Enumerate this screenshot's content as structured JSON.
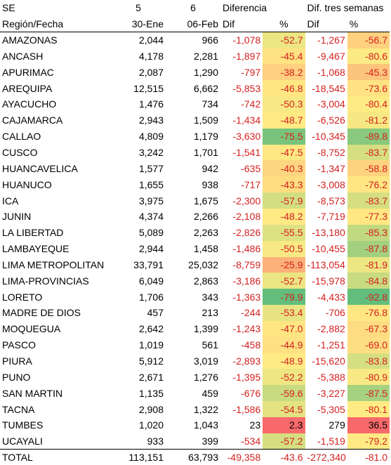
{
  "header": {
    "se_label": "SE",
    "week_a": "5",
    "week_b": "6",
    "diff_label": "Diferencia",
    "diff3_label": "Dif. tres semanas",
    "region_label": "Región/Fecha",
    "date_a": "30-Ene",
    "date_b": "06-Feb",
    "dif_col": "Dif",
    "pct_col": "%",
    "dif3_col": "Dif",
    "pct3_col": "%"
  },
  "colors": {
    "negative_text": "#d42020",
    "scale_low": "#63be7b",
    "scale_mid": "#ffeb84",
    "scale_high": "#f8696b"
  },
  "rows": [
    {
      "region": "AMAZONAS",
      "a": "2,044",
      "b": "966",
      "dif": "-1,078",
      "pct": "-52.7",
      "dif3": "-1,267",
      "pct3": "-56.7",
      "pv": -52.7,
      "pv3": -56.7
    },
    {
      "region": "ANCASH",
      "a": "4,178",
      "b": "2,281",
      "dif": "-1,897",
      "pct": "-45.4",
      "dif3": "-9,467",
      "pct3": "-80.6",
      "pv": -45.4,
      "pv3": -80.6
    },
    {
      "region": "APURIMAC",
      "a": "2,087",
      "b": "1,290",
      "dif": "-797",
      "pct": "-38.2",
      "dif3": "-1,068",
      "pct3": "-45.3",
      "pv": -38.2,
      "pv3": -45.3
    },
    {
      "region": "AREQUIPA",
      "a": "12,515",
      "b": "6,662",
      "dif": "-5,853",
      "pct": "-46.8",
      "dif3": "-18,545",
      "pct3": "-73.6",
      "pv": -46.8,
      "pv3": -73.6
    },
    {
      "region": "AYACUCHO",
      "a": "1,476",
      "b": "734",
      "dif": "-742",
      "pct": "-50.3",
      "dif3": "-3,004",
      "pct3": "-80.4",
      "pv": -50.3,
      "pv3": -80.4
    },
    {
      "region": "CAJAMARCA",
      "a": "2,943",
      "b": "1,509",
      "dif": "-1,434",
      "pct": "-48.7",
      "dif3": "-6,526",
      "pct3": "-81.2",
      "pv": -48.7,
      "pv3": -81.2
    },
    {
      "region": "CALLAO",
      "a": "4,809",
      "b": "1,179",
      "dif": "-3,630",
      "pct": "-75.5",
      "dif3": "-10,345",
      "pct3": "-89.8",
      "pv": -75.5,
      "pv3": -89.8
    },
    {
      "region": "CUSCO",
      "a": "3,242",
      "b": "1,701",
      "dif": "-1,541",
      "pct": "-47.5",
      "dif3": "-8,752",
      "pct3": "-83.7",
      "pv": -47.5,
      "pv3": -83.7
    },
    {
      "region": "HUANCAVELICA",
      "a": "1,577",
      "b": "942",
      "dif": "-635",
      "pct": "-40.3",
      "dif3": "-1,347",
      "pct3": "-58.8",
      "pv": -40.3,
      "pv3": -58.8
    },
    {
      "region": "HUANUCO",
      "a": "1,655",
      "b": "938",
      "dif": "-717",
      "pct": "-43.3",
      "dif3": "-3,008",
      "pct3": "-76.2",
      "pv": -43.3,
      "pv3": -76.2
    },
    {
      "region": "ICA",
      "a": "3,975",
      "b": "1,675",
      "dif": "-2,300",
      "pct": "-57.9",
      "dif3": "-8,573",
      "pct3": "-83.7",
      "pv": -57.9,
      "pv3": -83.7
    },
    {
      "region": "JUNIN",
      "a": "4,374",
      "b": "2,266",
      "dif": "-2,108",
      "pct": "-48.2",
      "dif3": "-7,719",
      "pct3": "-77.3",
      "pv": -48.2,
      "pv3": -77.3
    },
    {
      "region": "LA LIBERTAD",
      "a": "5,089",
      "b": "2,263",
      "dif": "-2,826",
      "pct": "-55.5",
      "dif3": "-13,180",
      "pct3": "-85.3",
      "pv": -55.5,
      "pv3": -85.3
    },
    {
      "region": "LAMBAYEQUE",
      "a": "2,944",
      "b": "1,458",
      "dif": "-1,486",
      "pct": "-50.5",
      "dif3": "-10,455",
      "pct3": "-87.8",
      "pv": -50.5,
      "pv3": -87.8
    },
    {
      "region": "LIMA METROPOLITAN",
      "a": "33,791",
      "b": "25,032",
      "dif": "-8,759",
      "pct": "-25.9",
      "dif3": "-113,054",
      "pct3": "-81.9",
      "pv": -25.9,
      "pv3": -81.9
    },
    {
      "region": "LIMA-PROVINCIAS",
      "a": "6,049",
      "b": "2,863",
      "dif": "-3,186",
      "pct": "-52.7",
      "dif3": "-15,978",
      "pct3": "-84.8",
      "pv": -52.7,
      "pv3": -84.8
    },
    {
      "region": "LORETO",
      "a": "1,706",
      "b": "343",
      "dif": "-1,363",
      "pct": "-79.9",
      "dif3": "-4,433",
      "pct3": "-92.8",
      "pv": -79.9,
      "pv3": -92.8
    },
    {
      "region": "MADRE DE DIOS",
      "a": "457",
      "b": "213",
      "dif": "-244",
      "pct": "-53.4",
      "dif3": "-706",
      "pct3": "-76.8",
      "pv": -53.4,
      "pv3": -76.8
    },
    {
      "region": "MOQUEGUA",
      "a": "2,642",
      "b": "1,399",
      "dif": "-1,243",
      "pct": "-47.0",
      "dif3": "-2,882",
      "pct3": "-67.3",
      "pv": -47.0,
      "pv3": -67.3
    },
    {
      "region": "PASCO",
      "a": "1,019",
      "b": "561",
      "dif": "-458",
      "pct": "-44.9",
      "dif3": "-1,251",
      "pct3": "-69.0",
      "pv": -44.9,
      "pv3": -69.0
    },
    {
      "region": "PIURA",
      "a": "5,912",
      "b": "3,019",
      "dif": "-2,893",
      "pct": "-48.9",
      "dif3": "-15,620",
      "pct3": "-83.8",
      "pv": -48.9,
      "pv3": -83.8
    },
    {
      "region": "PUNO",
      "a": "2,671",
      "b": "1,276",
      "dif": "-1,395",
      "pct": "-52.2",
      "dif3": "-5,388",
      "pct3": "-80.9",
      "pv": -52.2,
      "pv3": -80.9
    },
    {
      "region": "SAN MARTIN",
      "a": "1,135",
      "b": "459",
      "dif": "-676",
      "pct": "-59.6",
      "dif3": "-3,227",
      "pct3": "-87.5",
      "pv": -59.6,
      "pv3": -87.5
    },
    {
      "region": "TACNA",
      "a": "2,908",
      "b": "1,322",
      "dif": "-1,586",
      "pct": "-54.5",
      "dif3": "-5,305",
      "pct3": "-80.1",
      "pv": -54.5,
      "pv3": -80.1
    },
    {
      "region": "TUMBES",
      "a": "1,020",
      "b": "1,043",
      "dif": "23",
      "pct": "2.3",
      "dif3": "279",
      "pct3": "36.5",
      "pv": 2.3,
      "pv3": 36.5
    },
    {
      "region": "UCAYALI",
      "a": "933",
      "b": "399",
      "dif": "-534",
      "pct": "-57.2",
      "dif3": "-1,519",
      "pct3": "-79.2",
      "pv": -57.2,
      "pv3": -79.2
    }
  ],
  "total": {
    "region": "TOTAL",
    "a": "113,151",
    "b": "63,793",
    "dif": "-49,358",
    "pct": "-43.6",
    "dif3": "-272,340",
    "pct3": "-81.0"
  }
}
